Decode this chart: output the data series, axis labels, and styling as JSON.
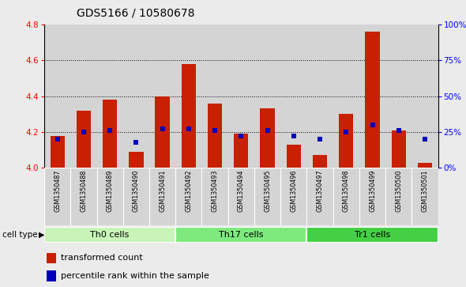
{
  "title": "GDS5166 / 10580678",
  "samples": [
    "GSM1350487",
    "GSM1350488",
    "GSM1350489",
    "GSM1350490",
    "GSM1350491",
    "GSM1350492",
    "GSM1350493",
    "GSM1350494",
    "GSM1350495",
    "GSM1350496",
    "GSM1350497",
    "GSM1350498",
    "GSM1350499",
    "GSM1350500",
    "GSM1350501"
  ],
  "red_values": [
    4.18,
    4.32,
    4.38,
    4.09,
    4.4,
    4.58,
    4.36,
    4.19,
    4.33,
    4.13,
    4.07,
    4.3,
    4.76,
    4.21,
    4.03
  ],
  "blue_values": [
    20,
    25,
    26,
    18,
    27,
    27,
    26,
    22,
    26,
    22,
    20,
    25,
    30,
    26,
    20
  ],
  "ylim_left": [
    4.0,
    4.8
  ],
  "ylim_right": [
    0,
    100
  ],
  "yticks_left": [
    4.0,
    4.2,
    4.4,
    4.6,
    4.8
  ],
  "yticks_right": [
    0,
    25,
    50,
    75,
    100
  ],
  "ytick_labels_right": [
    "0%",
    "25%",
    "50%",
    "75%",
    "100%"
  ],
  "cell_groups": [
    {
      "label": "Th0 cells",
      "start": 0,
      "end": 4
    },
    {
      "label": "Th17 cells",
      "start": 5,
      "end": 9
    },
    {
      "label": "Tr1 cells",
      "start": 10,
      "end": 14
    }
  ],
  "group_colors": [
    "#c8f4b8",
    "#7eea7e",
    "#44d044"
  ],
  "cell_type_label": "cell type",
  "legend_red": "transformed count",
  "legend_blue": "percentile rank within the sample",
  "bar_color": "#c82000",
  "blue_color": "#0000bb",
  "bar_bottom": 4.0,
  "bar_width": 0.55,
  "title_fontsize": 10,
  "fig_bg": "#ebebeb",
  "plot_bg": "#ffffff",
  "xtick_col_bg": "#d4d4d4"
}
